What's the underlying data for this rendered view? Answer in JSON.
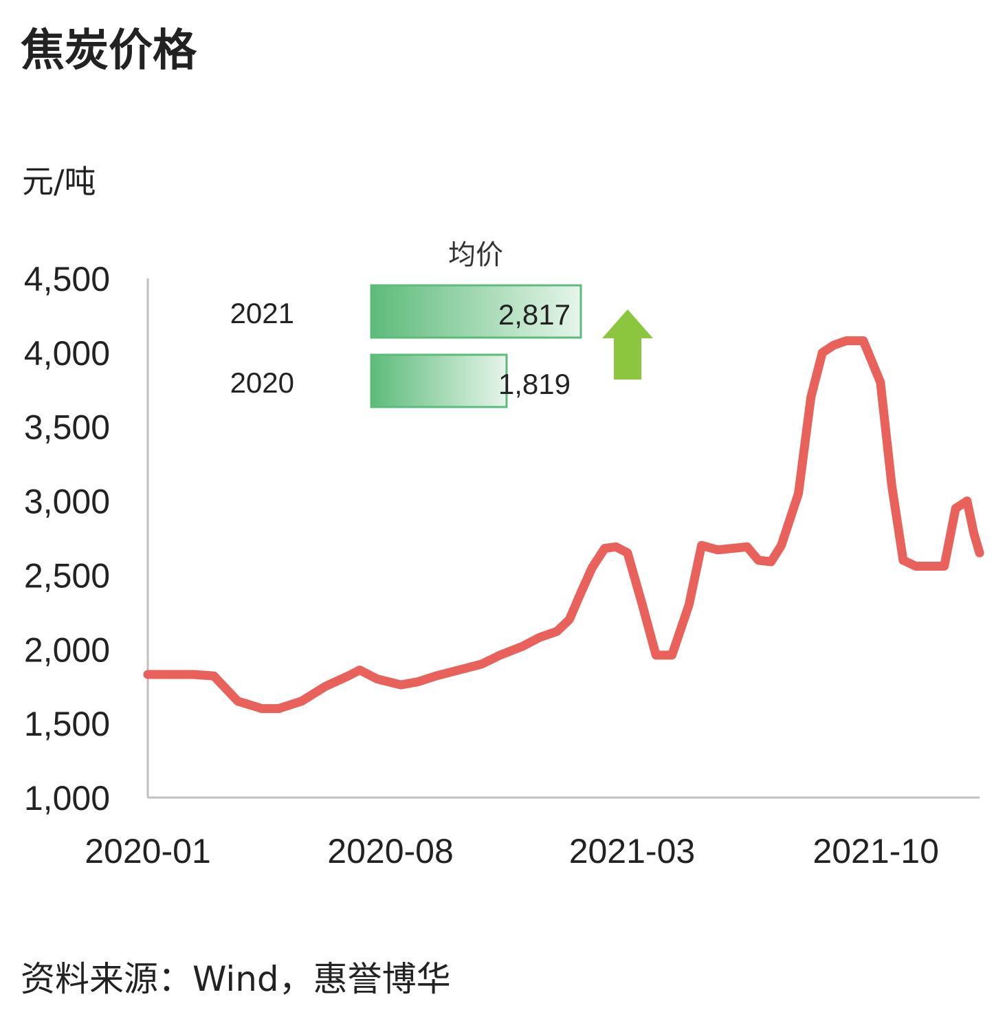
{
  "title": "焦炭价格",
  "unit_label": "元/吨",
  "source": "资料来源：Wind，惠誉博华",
  "colors": {
    "line": "#e8615b",
    "bar_dark": "#5dbb7a",
    "bar_light": "#e6f5ea",
    "arrow": "#8cc63f",
    "axis": "#bfbfbf"
  },
  "inset": {
    "title": "均价",
    "rows": [
      {
        "year": "2021",
        "label": "2,817",
        "value": 2817
      },
      {
        "year": "2020",
        "label": "1,819",
        "value": 1819
      }
    ],
    "arrow_icon": "up-arrow-icon"
  },
  "chart_data": {
    "type": "line",
    "ylim": [
      1000,
      4500
    ],
    "yticks": [
      "1,000",
      "1,500",
      "2,000",
      "2,500",
      "3,000",
      "3,500",
      "4,000",
      "4,500"
    ],
    "ytick_values": [
      1000,
      1500,
      2000,
      2500,
      3000,
      3500,
      4000,
      4500
    ],
    "xticks": [
      "2020-01",
      "2020-08",
      "2021-03",
      "2021-10"
    ],
    "xtick_positions": [
      "2020-01-01",
      "2020-08-01",
      "2021-03-01",
      "2021-10-01"
    ],
    "x_range": [
      "2020-01-01",
      "2021-12-31"
    ],
    "grid": false,
    "series": [
      {
        "name": "",
        "x": [
          "2020-01-01",
          "2020-02-10",
          "2020-02-28",
          "2020-03-20",
          "2020-04-10",
          "2020-04-25",
          "2020-05-15",
          "2020-06-05",
          "2020-06-25",
          "2020-07-05",
          "2020-07-20",
          "2020-08-10",
          "2020-08-25",
          "2020-09-10",
          "2020-09-30",
          "2020-10-20",
          "2020-11-05",
          "2020-11-25",
          "2020-12-10",
          "2020-12-25",
          "2021-01-05",
          "2021-01-15",
          "2021-01-25",
          "2021-02-05",
          "2021-02-15",
          "2021-02-25",
          "2021-03-10",
          "2021-03-22",
          "2021-04-05",
          "2021-04-20",
          "2021-05-01",
          "2021-05-15",
          "2021-05-28",
          "2021-06-10",
          "2021-06-20",
          "2021-07-01",
          "2021-07-10",
          "2021-07-25",
          "2021-08-05",
          "2021-08-15",
          "2021-08-25",
          "2021-09-05",
          "2021-09-20",
          "2021-10-05",
          "2021-10-15",
          "2021-10-25",
          "2021-11-05",
          "2021-11-15",
          "2021-11-30",
          "2021-12-10",
          "2021-12-20",
          "2021-12-26",
          "2021-12-31"
        ],
        "y": [
          1830,
          1830,
          1820,
          1650,
          1600,
          1600,
          1650,
          1750,
          1820,
          1860,
          1800,
          1760,
          1780,
          1820,
          1860,
          1900,
          1960,
          2020,
          2080,
          2120,
          2200,
          2380,
          2550,
          2680,
          2690,
          2650,
          2300,
          1960,
          1960,
          2300,
          2700,
          2670,
          2680,
          2690,
          2600,
          2590,
          2700,
          3050,
          3700,
          4000,
          4050,
          4080,
          4080,
          3800,
          3100,
          2600,
          2560,
          2560,
          2560,
          2950,
          3000,
          2780,
          2650
        ]
      }
    ]
  }
}
